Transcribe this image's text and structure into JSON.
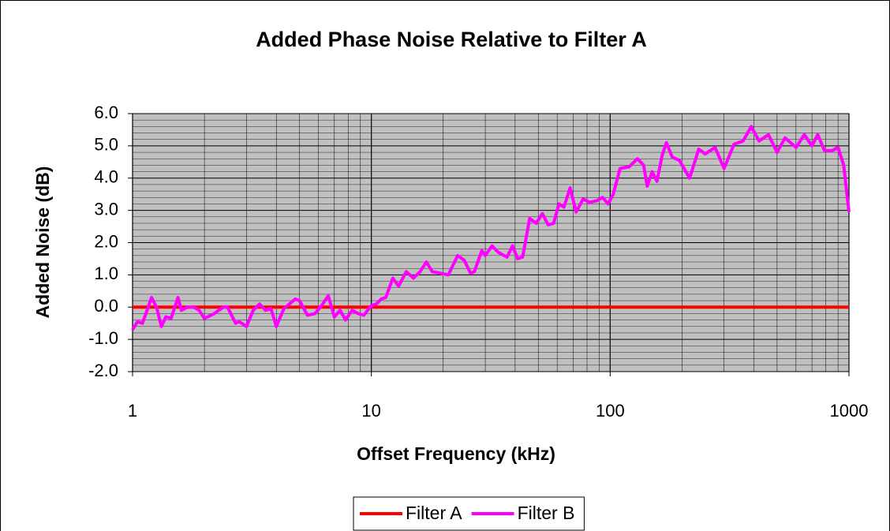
{
  "chart_data": {
    "type": "line",
    "title": "Added Phase Noise Relative to Filter A",
    "xlabel": "Offset Frequency (kHz)",
    "ylabel": "Added Noise (dB)",
    "xscale": "log",
    "xlim": [
      1,
      1000
    ],
    "xticks": [
      1,
      10,
      100,
      1000
    ],
    "ylim": [
      -2,
      6
    ],
    "yticks": [
      {
        "value": -2,
        "label": "-2.0"
      },
      {
        "value": -1,
        "label": "-1.0"
      },
      {
        "value": 0,
        "label": "0.0"
      },
      {
        "value": 1,
        "label": "1.0"
      },
      {
        "value": 2,
        "label": "2.0"
      },
      {
        "value": 3,
        "label": "3.0"
      },
      {
        "value": 4,
        "label": "4.0"
      },
      {
        "value": 5,
        "label": "5.0"
      },
      {
        "value": 6,
        "label": "6.0"
      }
    ],
    "grid": true,
    "legend": "bottom",
    "series": [
      {
        "name": "Filter A",
        "color": "#ff0000",
        "x": [
          1,
          1000
        ],
        "values": [
          0,
          0
        ]
      },
      {
        "name": "Filter B",
        "color": "#ff00ff",
        "x": [
          1,
          1.05,
          1.1,
          1.15,
          1.2,
          1.26,
          1.32,
          1.38,
          1.45,
          1.55,
          1.6,
          1.7,
          1.8,
          1.9,
          2.0,
          2.2,
          2.4,
          2.5,
          2.7,
          2.8,
          3.0,
          3.2,
          3.4,
          3.6,
          3.8,
          4.0,
          4.3,
          4.8,
          5.0,
          5.4,
          5.8,
          6.2,
          6.6,
          7.0,
          7.4,
          7.8,
          8.3,
          8.8,
          9.3,
          10,
          10.5,
          11,
          11.5,
          12.3,
          13,
          14,
          15,
          16,
          17,
          18,
          19.5,
          21,
          23,
          24.5,
          26,
          27,
          29,
          30,
          32,
          34,
          37,
          39,
          41,
          43,
          46,
          49,
          52,
          55,
          58,
          61,
          64,
          68,
          72,
          77,
          82,
          88,
          93,
          98,
          103,
          110,
          120,
          130,
          138,
          143,
          150,
          157,
          165,
          172,
          182,
          195,
          215,
          235,
          250,
          275,
          300,
          330,
          360,
          390,
          420,
          460,
          500,
          540,
          600,
          650,
          700,
          740,
          790,
          850,
          900,
          950,
          1000
        ],
        "values": [
          -0.7,
          -0.45,
          -0.5,
          -0.1,
          0.3,
          0.0,
          -0.6,
          -0.3,
          -0.35,
          0.3,
          -0.1,
          0.0,
          0.0,
          -0.1,
          -0.35,
          -0.2,
          0.0,
          0.0,
          -0.5,
          -0.45,
          -0.6,
          -0.1,
          0.1,
          -0.1,
          -0.05,
          -0.6,
          -0.05,
          0.25,
          0.2,
          -0.25,
          -0.2,
          0.05,
          0.35,
          -0.3,
          -0.1,
          -0.4,
          -0.1,
          -0.2,
          -0.25,
          0.05,
          0.1,
          0.25,
          0.3,
          0.9,
          0.65,
          1.1,
          0.9,
          1.1,
          1.4,
          1.1,
          1.05,
          1.0,
          1.6,
          1.45,
          1.05,
          1.1,
          1.75,
          1.6,
          1.9,
          1.7,
          1.55,
          1.9,
          1.5,
          1.55,
          2.75,
          2.6,
          2.9,
          2.55,
          2.6,
          3.2,
          3.1,
          3.7,
          2.95,
          3.35,
          3.25,
          3.3,
          3.4,
          3.2,
          3.5,
          4.3,
          4.35,
          4.6,
          4.4,
          3.75,
          4.2,
          3.9,
          4.7,
          5.1,
          4.65,
          4.55,
          4.0,
          4.9,
          4.75,
          4.95,
          4.3,
          5.05,
          5.15,
          5.6,
          5.15,
          5.35,
          4.8,
          5.25,
          4.95,
          5.35,
          5.0,
          5.35,
          4.85,
          4.85,
          4.95,
          4.4,
          2.95
        ]
      }
    ]
  }
}
